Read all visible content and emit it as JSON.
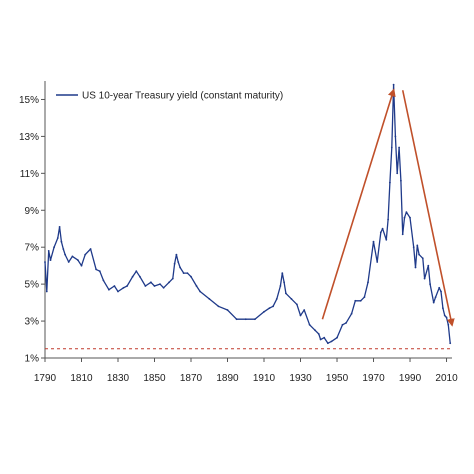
{
  "chart_data": {
    "type": "line",
    "title": "",
    "xlabel": "",
    "ylabel": "",
    "xlim": [
      1790,
      2013
    ],
    "ylim": [
      1,
      16
    ],
    "x_ticks": [
      1790,
      1810,
      1830,
      1850,
      1870,
      1890,
      1910,
      1930,
      1950,
      1970,
      1990,
      2010
    ],
    "x_tick_labels": [
      "1790",
      "1810",
      "1830",
      "1850",
      "1870",
      "1890",
      "1910",
      "1930",
      "1950",
      "1970",
      "1990",
      "2010"
    ],
    "y_ticks": [
      1,
      3,
      5,
      7,
      9,
      11,
      13,
      15
    ],
    "y_tick_labels": [
      "1%",
      "3%",
      "5%",
      "7%",
      "9%",
      "11%",
      "13%",
      "15%"
    ],
    "grid": false,
    "legend_position": "top-left",
    "series": [
      {
        "name": "US 10-year Treasury  yield (constant maturity)",
        "color": "#1f3a8a",
        "x": [
          1790,
          1791,
          1792,
          1793,
          1795,
          1797,
          1798,
          1799,
          1800,
          1801,
          1803,
          1805,
          1808,
          1810,
          1812,
          1815,
          1818,
          1820,
          1822,
          1825,
          1828,
          1830,
          1833,
          1835,
          1838,
          1840,
          1842,
          1845,
          1848,
          1850,
          1853,
          1855,
          1858,
          1860,
          1861,
          1862,
          1863,
          1864,
          1866,
          1868,
          1870,
          1873,
          1875,
          1880,
          1885,
          1890,
          1895,
          1900,
          1905,
          1910,
          1913,
          1915,
          1917,
          1919,
          1920,
          1921,
          1922,
          1925,
          1928,
          1930,
          1932,
          1935,
          1938,
          1940,
          1941,
          1943,
          1945,
          1947,
          1950,
          1953,
          1955,
          1958,
          1960,
          1963,
          1965,
          1967,
          1970,
          1972,
          1974,
          1975,
          1977,
          1978,
          1979,
          1980,
          1981,
          1982,
          1983,
          1984,
          1985,
          1986,
          1987,
          1988,
          1990,
          1992,
          1993,
          1994,
          1995,
          1997,
          1998,
          2000,
          2001,
          2003,
          2004,
          2006,
          2007,
          2008,
          2009,
          2010,
          2011,
          2012
        ],
        "y": [
          6.2,
          4.6,
          6.8,
          6.3,
          7.0,
          7.5,
          8.1,
          7.3,
          6.9,
          6.6,
          6.2,
          6.5,
          6.3,
          6.0,
          6.6,
          6.9,
          5.8,
          5.7,
          5.2,
          4.7,
          4.9,
          4.6,
          4.8,
          4.9,
          5.4,
          5.7,
          5.4,
          4.9,
          5.1,
          4.9,
          5.0,
          4.8,
          5.1,
          5.3,
          6.1,
          6.6,
          6.2,
          5.9,
          5.6,
          5.6,
          5.4,
          4.9,
          4.6,
          4.2,
          3.8,
          3.6,
          3.1,
          3.1,
          3.1,
          3.5,
          3.7,
          3.8,
          4.2,
          4.9,
          5.6,
          5.1,
          4.5,
          4.2,
          3.9,
          3.3,
          3.6,
          2.8,
          2.5,
          2.3,
          2.0,
          2.1,
          1.8,
          1.9,
          2.1,
          2.8,
          2.9,
          3.4,
          4.1,
          4.1,
          4.3,
          5.1,
          7.3,
          6.2,
          7.8,
          8.0,
          7.4,
          8.5,
          10.5,
          12.4,
          15.8,
          13.0,
          11.0,
          12.4,
          10.6,
          7.7,
          8.6,
          8.9,
          8.6,
          7.0,
          5.9,
          7.1,
          6.6,
          6.4,
          5.3,
          6.0,
          5.0,
          4.0,
          4.3,
          4.8,
          4.6,
          3.7,
          3.3,
          3.2,
          2.8,
          1.8
        ]
      }
    ],
    "reference_line": {
      "y": 1.5,
      "color": "#c0392b",
      "style": "dashed"
    },
    "annotations": [
      {
        "type": "arrow",
        "from": [
          1942,
          3.1
        ],
        "to": [
          1981,
          15.5
        ],
        "color": "#c0502a"
      },
      {
        "type": "arrow",
        "from": [
          1986,
          15.5
        ],
        "to": [
          2013,
          2.8
        ],
        "color": "#c0502a"
      }
    ]
  }
}
